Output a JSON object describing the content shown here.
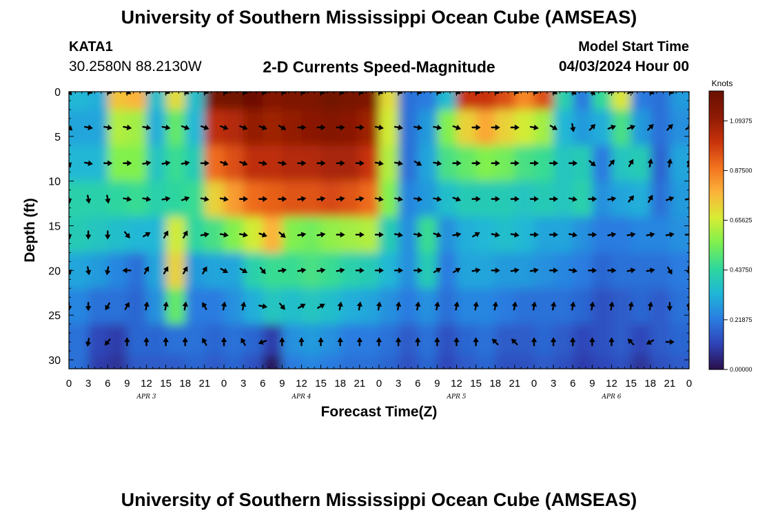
{
  "header": {
    "title": "University of Southern Mississippi Ocean Cube (AMSEAS)",
    "station": "KATA1",
    "coords": "30.2580N  88.2130W",
    "model_start_label": "Model Start Time",
    "model_start_value": "04/03/2024 Hour 00"
  },
  "footer": {
    "title": "University of Southern Mississippi Ocean Cube (AMSEAS)"
  },
  "chart_data": {
    "type": "heatmap",
    "title": "2-D Currents Speed-Magnitude",
    "xlabel": "Forecast Time(Z)",
    "ylabel": "Depth (ft)",
    "xlim": [
      0,
      96
    ],
    "ylim": [
      0,
      31
    ],
    "x_ticks": [
      {
        "value": 0,
        "label": "0"
      },
      {
        "value": 3,
        "label": "3"
      },
      {
        "value": 6,
        "label": "6"
      },
      {
        "value": 9,
        "label": "9"
      },
      {
        "value": 12,
        "label": "12"
      },
      {
        "value": 15,
        "label": "15"
      },
      {
        "value": 18,
        "label": "18"
      },
      {
        "value": 21,
        "label": "21"
      },
      {
        "value": 24,
        "label": "0"
      },
      {
        "value": 27,
        "label": "3"
      },
      {
        "value": 30,
        "label": "6"
      },
      {
        "value": 33,
        "label": "9"
      },
      {
        "value": 36,
        "label": "12"
      },
      {
        "value": 39,
        "label": "15"
      },
      {
        "value": 42,
        "label": "18"
      },
      {
        "value": 45,
        "label": "21"
      },
      {
        "value": 48,
        "label": "0"
      },
      {
        "value": 51,
        "label": "3"
      },
      {
        "value": 54,
        "label": "6"
      },
      {
        "value": 57,
        "label": "9"
      },
      {
        "value": 60,
        "label": "12"
      },
      {
        "value": 63,
        "label": "15"
      },
      {
        "value": 66,
        "label": "18"
      },
      {
        "value": 69,
        "label": "21"
      },
      {
        "value": 72,
        "label": "0"
      },
      {
        "value": 75,
        "label": "3"
      },
      {
        "value": 78,
        "label": "6"
      },
      {
        "value": 81,
        "label": "9"
      },
      {
        "value": 84,
        "label": "12"
      },
      {
        "value": 87,
        "label": "15"
      },
      {
        "value": 90,
        "label": "18"
      },
      {
        "value": 93,
        "label": "21"
      },
      {
        "value": 96,
        "label": "0"
      }
    ],
    "y_ticks": [
      0,
      5,
      10,
      15,
      20,
      25,
      30
    ],
    "day_labels": [
      {
        "value": 12,
        "label": "APR 3"
      },
      {
        "value": 36,
        "label": "APR 4"
      },
      {
        "value": 60,
        "label": "APR 5"
      },
      {
        "value": 84,
        "label": "APR 6"
      }
    ],
    "colorbar": {
      "unit": "Knots",
      "min": 0,
      "max": 1.225,
      "ticks": [
        "0.00000",
        "0.21875",
        "0.43750",
        "0.65625",
        "0.87500",
        "1.09375"
      ],
      "tick_values": [
        0,
        0.21875,
        0.4375,
        0.65625,
        0.875,
        1.09375
      ],
      "colors": [
        "#2a0f4b",
        "#2f42b6",
        "#2a7de1",
        "#1fb6d8",
        "#2fd89c",
        "#7ef04f",
        "#d8ec34",
        "#fcb33a",
        "#f2711e",
        "#c7320b",
        "#8c1a04",
        "#6a1002"
      ]
    },
    "speed_knots": [
      [
        0.34,
        0.32,
        0.75,
        0.78,
        0.36,
        0.7,
        0.36,
        1.18,
        1.2,
        1.22,
        1.14,
        1.16,
        1.16,
        1.2,
        1.18,
        1.16,
        0.7,
        0.2,
        0.22,
        0.35,
        1.0,
        1.0,
        0.95,
        0.85,
        0.95,
        0.42,
        0.22,
        0.45,
        0.68,
        0.22,
        0.2,
        0.28
      ],
      [
        0.3,
        0.3,
        0.62,
        0.6,
        0.32,
        0.52,
        0.34,
        1.02,
        1.04,
        1.1,
        1.08,
        1.1,
        1.12,
        1.14,
        1.12,
        1.08,
        0.66,
        0.2,
        0.28,
        0.56,
        0.72,
        0.8,
        0.72,
        0.66,
        0.6,
        0.34,
        0.28,
        0.32,
        0.48,
        0.28,
        0.2,
        0.26
      ],
      [
        0.34,
        0.34,
        0.56,
        0.56,
        0.38,
        0.46,
        0.4,
        0.9,
        0.95,
        1.02,
        1.02,
        1.04,
        1.04,
        1.06,
        1.06,
        1.0,
        0.62,
        0.2,
        0.3,
        0.48,
        0.52,
        0.56,
        0.54,
        0.48,
        0.46,
        0.38,
        0.4,
        0.22,
        0.38,
        0.4,
        0.18,
        0.3
      ],
      [
        0.42,
        0.42,
        0.44,
        0.46,
        0.42,
        0.44,
        0.46,
        0.72,
        0.82,
        0.9,
        0.92,
        0.94,
        0.94,
        0.96,
        0.94,
        0.9,
        0.56,
        0.24,
        0.28,
        0.36,
        0.4,
        0.4,
        0.4,
        0.38,
        0.4,
        0.38,
        0.42,
        0.26,
        0.3,
        0.32,
        0.2,
        0.28
      ],
      [
        0.4,
        0.38,
        0.36,
        0.34,
        0.34,
        0.66,
        0.44,
        0.48,
        0.56,
        0.66,
        0.78,
        0.56,
        0.54,
        0.58,
        0.6,
        0.62,
        0.4,
        0.26,
        0.46,
        0.26,
        0.32,
        0.34,
        0.36,
        0.34,
        0.3,
        0.3,
        0.26,
        0.22,
        0.22,
        0.24,
        0.24,
        0.26
      ],
      [
        0.3,
        0.28,
        0.24,
        0.2,
        0.3,
        0.72,
        0.28,
        0.3,
        0.3,
        0.42,
        0.46,
        0.46,
        0.48,
        0.46,
        0.42,
        0.4,
        0.34,
        0.26,
        0.4,
        0.22,
        0.3,
        0.3,
        0.28,
        0.28,
        0.26,
        0.24,
        0.22,
        0.18,
        0.2,
        0.2,
        0.2,
        0.22
      ],
      [
        0.24,
        0.2,
        0.2,
        0.18,
        0.26,
        0.52,
        0.22,
        0.22,
        0.26,
        0.32,
        0.38,
        0.36,
        0.38,
        0.36,
        0.32,
        0.3,
        0.26,
        0.22,
        0.26,
        0.2,
        0.24,
        0.24,
        0.22,
        0.2,
        0.2,
        0.2,
        0.18,
        0.14,
        0.16,
        0.18,
        0.16,
        0.2
      ],
      [
        0.2,
        0.12,
        0.1,
        0.18,
        0.18,
        0.2,
        0.2,
        0.18,
        0.2,
        0.18,
        0.1,
        0.26,
        0.28,
        0.26,
        0.22,
        0.22,
        0.2,
        0.16,
        0.2,
        0.14,
        0.18,
        0.2,
        0.16,
        0.16,
        0.18,
        0.16,
        0.12,
        0.14,
        0.16,
        0.12,
        0.16,
        0.18
      ],
      [
        0.2,
        0.1,
        0.08,
        0.16,
        0.16,
        0.16,
        0.18,
        0.16,
        0.18,
        0.14,
        0.02,
        0.22,
        0.24,
        0.22,
        0.2,
        0.2,
        0.18,
        0.14,
        0.18,
        0.12,
        0.16,
        0.18,
        0.14,
        0.14,
        0.16,
        0.14,
        0.1,
        0.12,
        0.14,
        0.08,
        0.14,
        0.16
      ]
    ],
    "depths_ft": [
      0,
      4,
      8,
      12,
      16,
      20,
      24,
      28,
      31
    ],
    "arrow_rows": [
      {
        "depth": 0,
        "times": [
          0,
          3,
          6,
          9,
          12,
          15,
          18,
          21,
          24,
          27,
          30,
          33,
          36,
          39,
          42,
          45,
          48,
          51,
          54,
          57,
          60,
          63,
          66,
          69,
          72,
          75,
          78,
          81,
          84,
          87,
          90,
          93,
          96
        ],
        "dirs": [
          140,
          110,
          110,
          120,
          110,
          110,
          120,
          110,
          110,
          110,
          110,
          110,
          110,
          110,
          115,
          115,
          115,
          110,
          110,
          110,
          115,
          110,
          110,
          110,
          110,
          120,
          130,
          140,
          60,
          60,
          120,
          110,
          110
        ]
      },
      {
        "depth": 4,
        "times": [
          0,
          3,
          6,
          9,
          12,
          15,
          18,
          21,
          24,
          27,
          30,
          33,
          36,
          39,
          42,
          45,
          48,
          51,
          54,
          57,
          60,
          63,
          66,
          69,
          72,
          75,
          78,
          81,
          84,
          87,
          90,
          93,
          96
        ],
        "dirs": [
          130,
          100,
          100,
          100,
          100,
          100,
          110,
          110,
          110,
          110,
          110,
          120,
          90,
          90,
          90,
          90,
          100,
          100,
          100,
          100,
          110,
          90,
          90,
          90,
          100,
          120,
          170,
          45,
          70,
          70,
          45,
          45,
          60
        ]
      },
      {
        "depth": 8,
        "times": [
          0,
          3,
          6,
          9,
          12,
          15,
          18,
          21,
          24,
          27,
          30,
          33,
          36,
          39,
          42,
          45,
          48,
          51,
          54,
          57,
          60,
          63,
          66,
          69,
          72,
          75,
          78,
          81,
          84,
          87,
          90,
          93,
          96
        ],
        "dirs": [
          160,
          100,
          90,
          90,
          80,
          80,
          80,
          90,
          110,
          110,
          100,
          100,
          90,
          90,
          90,
          90,
          100,
          100,
          120,
          100,
          90,
          90,
          90,
          90,
          90,
          90,
          90,
          130,
          40,
          30,
          10,
          10,
          20
        ]
      },
      {
        "depth": 12,
        "times": [
          0,
          3,
          6,
          9,
          12,
          15,
          18,
          21,
          24,
          27,
          30,
          33,
          36,
          39,
          42,
          45,
          48,
          51,
          54,
          57,
          60,
          63,
          66,
          69,
          72,
          75,
          78,
          81,
          84,
          87,
          90,
          93,
          96
        ],
        "dirs": [
          170,
          170,
          170,
          100,
          100,
          80,
          70,
          100,
          100,
          90,
          90,
          90,
          80,
          80,
          80,
          80,
          100,
          100,
          100,
          100,
          110,
          90,
          90,
          90,
          90,
          90,
          100,
          90,
          80,
          40,
          30,
          70,
          80
        ]
      },
      {
        "depth": 16,
        "times": [
          0,
          3,
          6,
          9,
          12,
          15,
          18,
          21,
          24,
          27,
          30,
          33,
          36,
          39,
          42,
          45,
          48,
          51,
          54,
          57,
          60,
          63,
          66,
          69,
          72,
          75,
          78,
          81,
          84,
          87,
          90,
          93,
          96
        ],
        "dirs": [
          170,
          180,
          180,
          140,
          60,
          30,
          30,
          80,
          100,
          100,
          110,
          130,
          80,
          80,
          90,
          90,
          90,
          100,
          100,
          110,
          80,
          60,
          100,
          100,
          90,
          90,
          100,
          90,
          80,
          80,
          80,
          80,
          90
        ]
      },
      {
        "depth": 20,
        "times": [
          0,
          3,
          6,
          9,
          12,
          15,
          18,
          21,
          24,
          27,
          30,
          33,
          36,
          39,
          42,
          45,
          48,
          51,
          54,
          57,
          60,
          63,
          66,
          69,
          72,
          75,
          78,
          81,
          84,
          87,
          90,
          93,
          96
        ],
        "dirs": [
          160,
          170,
          190,
          270,
          30,
          30,
          30,
          30,
          120,
          120,
          140,
          80,
          80,
          80,
          80,
          90,
          90,
          90,
          90,
          60,
          60,
          80,
          90,
          80,
          80,
          90,
          100,
          90,
          90,
          80,
          80,
          150,
          170
        ]
      },
      {
        "depth": 24,
        "times": [
          0,
          3,
          6,
          9,
          12,
          15,
          18,
          21,
          24,
          27,
          30,
          33,
          36,
          39,
          42,
          45,
          48,
          51,
          54,
          57,
          60,
          63,
          66,
          69,
          72,
          75,
          78,
          81,
          84,
          87,
          90,
          93,
          96
        ],
        "dirs": [
          180,
          180,
          210,
          30,
          10,
          10,
          10,
          330,
          10,
          10,
          100,
          140,
          60,
          60,
          10,
          10,
          10,
          10,
          10,
          10,
          10,
          10,
          10,
          10,
          10,
          10,
          10,
          10,
          10,
          10,
          10,
          180,
          10
        ]
      },
      {
        "depth": 28,
        "times": [
          3,
          6,
          9,
          12,
          15,
          18,
          21,
          24,
          27,
          30,
          33,
          36,
          39,
          42,
          45,
          48,
          51,
          54,
          57,
          60,
          63,
          66,
          69,
          72,
          75,
          78,
          81,
          84,
          87,
          90,
          93
        ],
        "dirs": [
          190,
          220,
          0,
          0,
          0,
          0,
          330,
          0,
          330,
          250,
          0,
          0,
          0,
          0,
          0,
          0,
          0,
          0,
          0,
          0,
          0,
          315,
          315,
          0,
          0,
          0,
          0,
          0,
          315,
          240,
          90
        ]
      }
    ]
  }
}
